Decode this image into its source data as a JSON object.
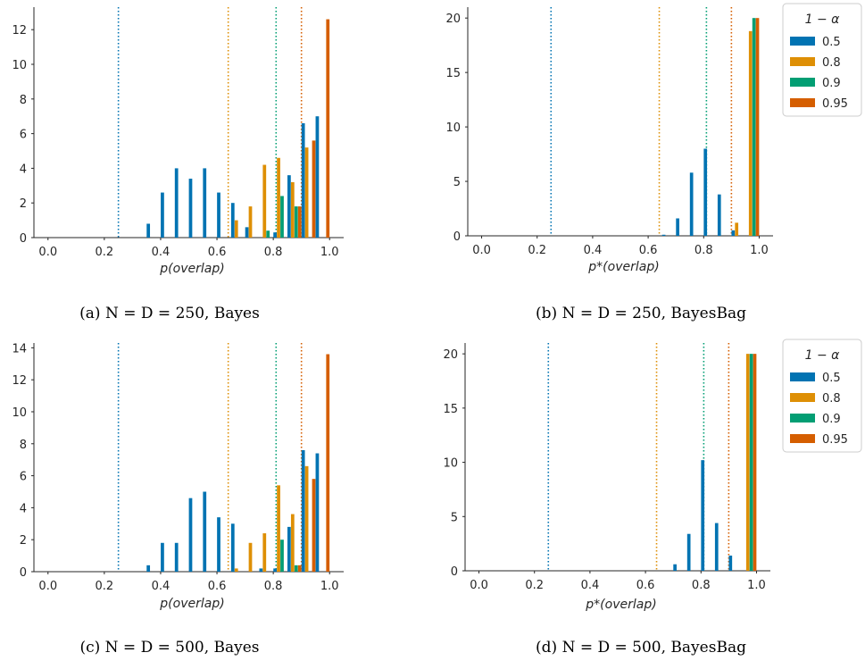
{
  "chart_data": [
    {
      "type": "bar",
      "caption": "(a) N = D = 250, Bayes",
      "xlabel": "p(overlap)",
      "xlim": [
        -0.05,
        1.05
      ],
      "ylim": [
        0,
        13.3
      ],
      "xticks": [
        "0.0",
        "0.2",
        "0.4",
        "0.6",
        "0.8",
        "1.0"
      ],
      "yticks": [
        "0",
        "2",
        "4",
        "6",
        "8",
        "10",
        "12"
      ],
      "bin_centers": [
        0.375,
        0.425,
        0.475,
        0.525,
        0.575,
        0.625,
        0.675,
        0.725,
        0.775,
        0.825,
        0.875,
        0.925,
        0.975
      ],
      "series": [
        {
          "name": "0.5",
          "color": "#0173b2",
          "values": [
            0.8,
            2.6,
            4.0,
            3.4,
            4.0,
            2.6,
            2.0,
            0.6,
            0,
            0.3,
            3.6,
            6.6,
            7.0
          ]
        },
        {
          "name": "0.8",
          "color": "#de8f05",
          "values": [
            0,
            0,
            0,
            0,
            0,
            0,
            1.0,
            1.8,
            4.2,
            4.6,
            3.2,
            5.2,
            0
          ]
        },
        {
          "name": "0.9",
          "color": "#029e73",
          "values": [
            0,
            0,
            0,
            0,
            0,
            0,
            0,
            0,
            0.4,
            2.4,
            1.8,
            0,
            0
          ]
        },
        {
          "name": "0.95",
          "color": "#d55e00",
          "values": [
            0,
            0,
            0,
            0,
            0,
            0,
            0,
            0,
            0,
            0,
            1.8,
            5.6,
            12.6
          ]
        }
      ],
      "vlines": [
        {
          "x": 0.25,
          "color": "#0173b2"
        },
        {
          "x": 0.64,
          "color": "#de8f05"
        },
        {
          "x": 0.81,
          "color": "#029e73"
        },
        {
          "x": 0.9,
          "color": "#d55e00"
        }
      ],
      "legend": false
    },
    {
      "type": "bar",
      "caption": "(b) N = D = 250, BayesBag",
      "xlabel": "p*(overlap)",
      "xlim": [
        -0.05,
        1.05
      ],
      "ylim": [
        0,
        21
      ],
      "xticks": [
        "0.0",
        "0.2",
        "0.4",
        "0.6",
        "0.8",
        "1.0"
      ],
      "yticks": [
        "0",
        "5",
        "10",
        "15",
        "20"
      ],
      "bin_centers": [
        0.675,
        0.725,
        0.775,
        0.825,
        0.875,
        0.925,
        0.975
      ],
      "series": [
        {
          "name": "0.5",
          "color": "#0173b2",
          "values": [
            0.1,
            1.6,
            5.8,
            8.0,
            3.8,
            0.5,
            0
          ]
        },
        {
          "name": "0.8",
          "color": "#de8f05",
          "values": [
            0,
            0,
            0,
            0,
            0,
            1.2,
            18.8
          ]
        },
        {
          "name": "0.9",
          "color": "#029e73",
          "values": [
            0,
            0,
            0,
            0,
            0,
            0,
            20.0
          ]
        },
        {
          "name": "0.95",
          "color": "#d55e00",
          "values": [
            0,
            0,
            0,
            0,
            0,
            0,
            20.0
          ]
        }
      ],
      "vlines": [
        {
          "x": 0.25,
          "color": "#0173b2"
        },
        {
          "x": 0.64,
          "color": "#de8f05"
        },
        {
          "x": 0.81,
          "color": "#029e73"
        },
        {
          "x": 0.9,
          "color": "#d55e00"
        }
      ],
      "legend": true,
      "legend_title": "1 − α"
    },
    {
      "type": "bar",
      "caption": "(c) N = D = 500, Bayes",
      "xlabel": "p(overlap)",
      "xlim": [
        -0.05,
        1.05
      ],
      "ylim": [
        0,
        14.3
      ],
      "xticks": [
        "0.0",
        "0.2",
        "0.4",
        "0.6",
        "0.8",
        "1.0"
      ],
      "yticks": [
        "0",
        "2",
        "4",
        "6",
        "8",
        "10",
        "12",
        "14"
      ],
      "bin_centers": [
        0.375,
        0.425,
        0.475,
        0.525,
        0.575,
        0.625,
        0.675,
        0.725,
        0.775,
        0.825,
        0.875,
        0.925,
        0.975
      ],
      "series": [
        {
          "name": "0.5",
          "color": "#0173b2",
          "values": [
            0.4,
            1.8,
            1.8,
            4.6,
            5.0,
            3.4,
            3.0,
            0,
            0.2,
            0.2,
            2.8,
            7.6,
            7.4
          ]
        },
        {
          "name": "0.8",
          "color": "#de8f05",
          "values": [
            0,
            0,
            0,
            0,
            0,
            0,
            0.2,
            1.8,
            2.4,
            5.4,
            3.6,
            6.6,
            0
          ]
        },
        {
          "name": "0.9",
          "color": "#029e73",
          "values": [
            0,
            0,
            0,
            0,
            0,
            0,
            0,
            0,
            0,
            2.0,
            0.4,
            0,
            0
          ]
        },
        {
          "name": "0.95",
          "color": "#d55e00",
          "values": [
            0,
            0,
            0,
            0,
            0,
            0,
            0,
            0,
            0,
            0,
            0.4,
            5.8,
            13.6
          ]
        }
      ],
      "vlines": [
        {
          "x": 0.25,
          "color": "#0173b2"
        },
        {
          "x": 0.64,
          "color": "#de8f05"
        },
        {
          "x": 0.81,
          "color": "#029e73"
        },
        {
          "x": 0.9,
          "color": "#d55e00"
        }
      ],
      "legend": false
    },
    {
      "type": "bar",
      "caption": "(d) N = D = 500, BayesBag",
      "xlabel": "p*(overlap)",
      "xlim": [
        -0.05,
        1.05
      ],
      "ylim": [
        0,
        21
      ],
      "xticks": [
        "0.0",
        "0.2",
        "0.4",
        "0.6",
        "0.8",
        "1.0"
      ],
      "yticks": [
        "0",
        "5",
        "10",
        "15",
        "20"
      ],
      "bin_centers": [
        0.675,
        0.725,
        0.775,
        0.825,
        0.875,
        0.925,
        0.975
      ],
      "series": [
        {
          "name": "0.5",
          "color": "#0173b2",
          "values": [
            0,
            0.6,
            3.4,
            10.2,
            4.4,
            1.4,
            0
          ]
        },
        {
          "name": "0.8",
          "color": "#de8f05",
          "values": [
            0,
            0,
            0,
            0,
            0,
            0,
            20.0
          ]
        },
        {
          "name": "0.9",
          "color": "#029e73",
          "values": [
            0,
            0,
            0,
            0,
            0,
            0,
            20.0
          ]
        },
        {
          "name": "0.95",
          "color": "#d55e00",
          "values": [
            0,
            0,
            0,
            0,
            0,
            0,
            20.0
          ]
        }
      ],
      "vlines": [
        {
          "x": 0.25,
          "color": "#0173b2"
        },
        {
          "x": 0.64,
          "color": "#de8f05"
        },
        {
          "x": 0.81,
          "color": "#029e73"
        },
        {
          "x": 0.9,
          "color": "#d55e00"
        }
      ],
      "legend": true,
      "legend_title": "1 − α"
    }
  ]
}
